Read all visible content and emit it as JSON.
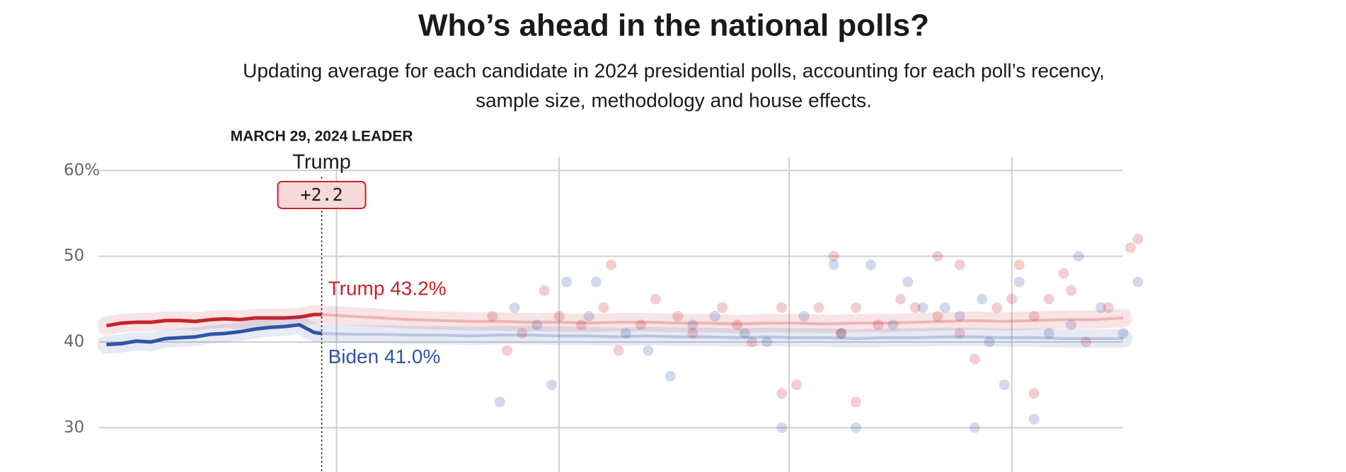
{
  "chart_data": {
    "type": "line",
    "title": "Who’s ahead in the national polls?",
    "subtitle": [
      "Updating average for each candidate in 2024 presidential polls, accounting for each poll’s recency,",
      "sample size, methodology and house effects."
    ],
    "leader": {
      "title": "MARCH 29, 2024 LEADER",
      "name": "Trump",
      "value": 2.2,
      "value_label": "+2.2",
      "x": 30
    },
    "x": [
      1,
      3,
      5,
      7,
      9,
      11,
      13,
      15,
      17,
      19,
      21,
      23,
      25,
      27,
      29,
      30,
      34,
      38,
      42,
      46,
      50,
      54,
      58,
      62,
      66,
      70,
      74,
      78,
      82,
      86,
      90,
      94,
      98,
      102,
      106,
      110,
      114,
      118,
      122,
      126,
      130,
      134,
      138
    ],
    "series": [
      {
        "name": "Trump",
        "color": "#c8222b",
        "end_label": "Trump 43.2%",
        "values": [
          41.9,
          42.2,
          42.3,
          42.3,
          42.5,
          42.5,
          42.4,
          42.6,
          42.7,
          42.6,
          42.8,
          42.8,
          42.8,
          42.9,
          43.2,
          43.2,
          43.0,
          42.8,
          42.6,
          42.5,
          42.4,
          42.4,
          42.3,
          42.3,
          42.2,
          42.3,
          42.3,
          42.2,
          42.2,
          42.1,
          42.2,
          42.2,
          42.1,
          42.2,
          42.2,
          42.3,
          42.4,
          42.5,
          42.4,
          42.5,
          42.6,
          42.6,
          42.8
        ]
      },
      {
        "name": "Biden",
        "color": "#2e54a6",
        "end_label": "Biden 41.0%",
        "values": [
          39.7,
          39.8,
          40.1,
          40.0,
          40.4,
          40.5,
          40.6,
          40.9,
          41.0,
          41.2,
          41.5,
          41.7,
          41.8,
          42.0,
          41.1,
          41.0,
          40.9,
          40.9,
          40.8,
          40.8,
          40.7,
          40.8,
          40.8,
          40.7,
          40.7,
          40.6,
          40.7,
          40.6,
          40.6,
          40.5,
          40.6,
          40.5,
          40.5,
          40.4,
          40.5,
          40.5,
          40.6,
          40.6,
          40.5,
          40.5,
          40.4,
          40.4,
          40.4
        ]
      }
    ],
    "polls": [
      {
        "color": "#2e54a6",
        "x": [
          54,
          63,
          67,
          74,
          99,
          104,
          92,
          102,
          118,
          126,
          132,
          140,
          109,
          122,
          77,
          61,
          120,
          87,
          114,
          124,
          56,
          59,
          66,
          71,
          80,
          83,
          90,
          95,
          100,
          107,
          111,
          116,
          119,
          128,
          131,
          135,
          138
        ],
        "y": [
          33,
          47,
          47,
          39,
          49,
          49,
          30,
          30,
          30,
          31,
          50,
          47,
          47,
          35,
          36,
          35,
          40,
          41,
          44,
          47,
          44,
          42,
          43,
          41,
          42,
          43,
          40,
          43,
          41,
          42,
          44,
          43,
          45,
          41,
          42,
          44,
          41
        ]
      },
      {
        "color": "#c8222b",
        "x": [
          53,
          55,
          57,
          60,
          62,
          65,
          68,
          70,
          73,
          75,
          78,
          80,
          84,
          86,
          88,
          92,
          94,
          97,
          100,
          102,
          105,
          108,
          110,
          113,
          116,
          118,
          121,
          123,
          126,
          128,
          131,
          133,
          136,
          99,
          113,
          116,
          124,
          130,
          140,
          139,
          92,
          102,
          126,
          69
        ],
        "y": [
          43,
          39,
          41,
          46,
          43,
          42,
          44,
          39,
          42,
          45,
          43,
          41,
          44,
          42,
          40,
          44,
          35,
          44,
          41,
          44,
          42,
          45,
          44,
          43,
          41,
          38,
          44,
          45,
          43,
          45,
          46,
          40,
          44,
          50,
          50,
          49,
          49,
          48,
          52,
          51,
          34,
          33,
          34,
          49
        ]
      }
    ],
    "xlim": [
      0,
      138
    ],
    "xticks": [
      32,
      62,
      93,
      123
    ],
    "ylim": [
      25,
      62
    ],
    "yticks": [
      {
        "value": 60,
        "label": "60%"
      },
      50,
      40,
      30
    ],
    "grid": true
  }
}
